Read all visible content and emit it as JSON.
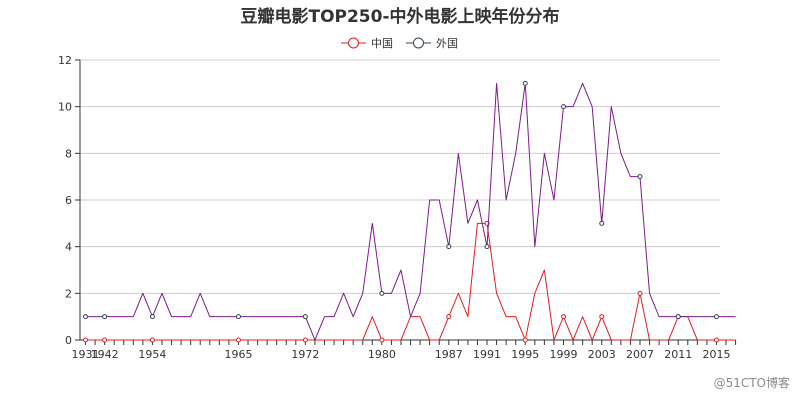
{
  "watermark": "@51CTO博客",
  "chart_data": {
    "type": "line",
    "title": "豆瓣电影TOP250-中外电影上映年份分布",
    "xlabel": "",
    "ylabel": "",
    "ylim": [
      0,
      12
    ],
    "y_ticks": [
      "0",
      "2",
      "4",
      "6",
      "8",
      "10",
      "12"
    ],
    "x_tick_labels": [
      "1931",
      "1942",
      "1954",
      "1965",
      "1972",
      "1980",
      "1987",
      "1991",
      "1995",
      "1999",
      "2003",
      "2007",
      "2011",
      "2015"
    ],
    "grid": "horizontal",
    "legend_position": "top-center",
    "x": [
      "1931",
      "1939",
      "1942",
      "1946",
      "1948",
      "1950",
      "1952",
      "1954",
      "1955",
      "1957",
      "1959",
      "1960",
      "1961",
      "1962",
      "1963",
      "1964",
      "1965",
      "1966",
      "1967",
      "1968",
      "1969",
      "1970",
      "1971",
      "1972",
      "1973",
      "1974",
      "1975",
      "1976",
      "1977",
      "1978",
      "1979",
      "1980",
      "1981",
      "1982",
      "1983",
      "1984",
      "1985",
      "1986",
      "1987",
      "1988",
      "1989",
      "1990",
      "1991",
      "1992",
      "1993",
      "1994",
      "1995",
      "1996",
      "1997",
      "1998",
      "1999",
      "2000",
      "2001",
      "2002",
      "2003",
      "2004",
      "2005",
      "2006",
      "2007",
      "2008",
      "2009",
      "2010",
      "2011",
      "2012",
      "2013",
      "2014",
      "2015",
      "2016",
      "2017"
    ],
    "series": [
      {
        "name": "中国",
        "color": "#e01f1f",
        "values": [
          0,
          0,
          0,
          0,
          0,
          0,
          0,
          0,
          0,
          0,
          0,
          0,
          0,
          0,
          0,
          0,
          0,
          0,
          0,
          0,
          0,
          0,
          0,
          0,
          0,
          0,
          0,
          0,
          0,
          0,
          1,
          0,
          0,
          0,
          1,
          1,
          0,
          0,
          1,
          2,
          1,
          5,
          5,
          2,
          1,
          1,
          0,
          2,
          3,
          0,
          1,
          0,
          1,
          0,
          1,
          0,
          0,
          0,
          2,
          0,
          0,
          0,
          1,
          1,
          0,
          0,
          0,
          0,
          0
        ]
      },
      {
        "name": "外国",
        "color": "#7d1a8c",
        "values": [
          1,
          1,
          1,
          1,
          1,
          1,
          2,
          1,
          2,
          1,
          1,
          1,
          2,
          1,
          1,
          1,
          1,
          1,
          1,
          1,
          1,
          1,
          1,
          1,
          0,
          1,
          1,
          2,
          1,
          2,
          5,
          2,
          2,
          3,
          1,
          2,
          6,
          6,
          4,
          8,
          5,
          6,
          4,
          11,
          6,
          8,
          11,
          4,
          8,
          6,
          10,
          10,
          11,
          10,
          5,
          10,
          8,
          7,
          7,
          2,
          1,
          1,
          1,
          1,
          1,
          1,
          1,
          1,
          1
        ]
      }
    ]
  }
}
